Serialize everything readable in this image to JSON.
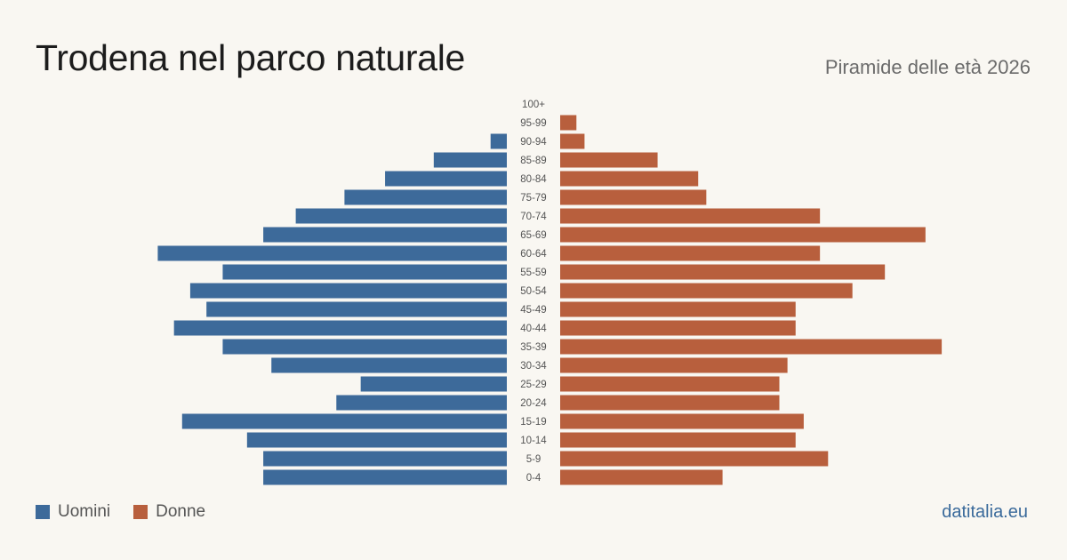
{
  "header": {
    "title": "Trodena nel parco naturale",
    "subtitle": "Piramide delle età 2026"
  },
  "legend": {
    "men_label": "Uomini",
    "women_label": "Donne"
  },
  "brand": "datitalia.eu",
  "colors": {
    "men": "#3d6a9a",
    "women": "#b85f3d",
    "background": "#f9f7f2"
  },
  "chart_data": {
    "type": "bar",
    "orientation": "horizontal-pyramid",
    "categories": [
      "100+",
      "95-99",
      "90-94",
      "85-89",
      "80-84",
      "75-79",
      "70-74",
      "65-69",
      "60-64",
      "55-59",
      "50-54",
      "45-49",
      "40-44",
      "35-39",
      "30-34",
      "25-29",
      "20-24",
      "15-19",
      "10-14",
      "5-9",
      "0-4"
    ],
    "series": [
      {
        "name": "Uomini",
        "values": [
          0,
          0,
          2,
          9,
          15,
          20,
          26,
          30,
          43,
          35,
          39,
          37,
          41,
          35,
          29,
          18,
          21,
          40,
          32,
          30,
          30
        ]
      },
      {
        "name": "Donne",
        "values": [
          0,
          2,
          3,
          12,
          17,
          18,
          32,
          45,
          32,
          40,
          36,
          29,
          29,
          47,
          28,
          27,
          27,
          30,
          29,
          33,
          20
        ]
      }
    ],
    "legend_position": "bottom-left",
    "grid": false
  }
}
